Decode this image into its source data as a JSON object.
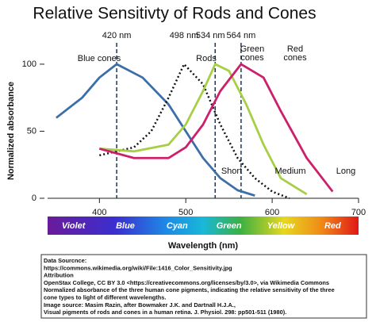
{
  "chart_data": {
    "type": "line",
    "title": "Relative Sensitivty of Rods and Cones",
    "x_label": "Wavelength (nm)",
    "y_label": "Normalized absorbance",
    "xlim": [
      340,
      700
    ],
    "xticks": [
      400,
      500,
      600,
      700
    ],
    "ylim": [
      0,
      110
    ],
    "yticks": [
      0,
      50,
      100
    ],
    "series": [
      {
        "name": "Blue cones",
        "color": "#3c6fa8",
        "dash": false,
        "x": [
          350,
          380,
          400,
          420,
          450,
          480,
          500,
          520,
          540,
          560,
          580
        ],
        "values": [
          60,
          75,
          90,
          100,
          90,
          70,
          50,
          30,
          15,
          6,
          2
        ]
      },
      {
        "name": "Rods",
        "color": "#111111",
        "dash": true,
        "x": [
          400,
          440,
          460,
          480,
          498,
          520,
          540,
          560,
          580,
          600,
          620
        ],
        "values": [
          32,
          38,
          50,
          75,
          100,
          85,
          55,
          30,
          15,
          5,
          0
        ]
      },
      {
        "name": "Green cones",
        "color": "#a7cf45",
        "dash": false,
        "x": [
          400,
          440,
          480,
          500,
          520,
          534,
          550,
          570,
          590,
          610,
          640
        ],
        "values": [
          37,
          35,
          40,
          55,
          80,
          100,
          95,
          70,
          40,
          15,
          3
        ]
      },
      {
        "name": "Red cones",
        "color": "#cc1f6c",
        "dash": false,
        "x": [
          400,
          440,
          480,
          500,
          520,
          540,
          564,
          590,
          610,
          640,
          670
        ],
        "values": [
          37,
          30,
          30,
          38,
          55,
          80,
          100,
          90,
          65,
          30,
          5
        ]
      }
    ],
    "markers": [
      {
        "value": 420,
        "label": "420 nm",
        "line": true
      },
      {
        "value": 498,
        "label": "498 nm",
        "line": false
      },
      {
        "value": 534,
        "label": "534 nm",
        "line": true
      },
      {
        "value": 564,
        "label": "564 nm",
        "line": true
      }
    ],
    "annotations": [
      "Short",
      "Medium",
      "Long"
    ],
    "spectrum": [
      "Violet",
      "Blue",
      "Cyan",
      "Green",
      "Yellow",
      "Red"
    ],
    "source": [
      "Data Sourcnce:",
      "https://commons.wikimedia.org/wiki/File:1416_Color_Sensitivity.jpg",
      "Attribution",
      "OpenStax College, CC BY 3.0 <https://creativecommons.org/licenses/by/3.0>, via Wikimedia Commons",
      "Normalized absorbance of the three human cone pigments, indicating the relative sensitivity of the three",
      "cone types to light of different wavelengths.",
      "Image source: Masim Razin, after Bowmaker J.K. and Dartnall H.J.A.,",
      "Visual pigments of rods and cones in a human retina. J. Physiol. 298: pp501-511 (1980)."
    ]
  }
}
